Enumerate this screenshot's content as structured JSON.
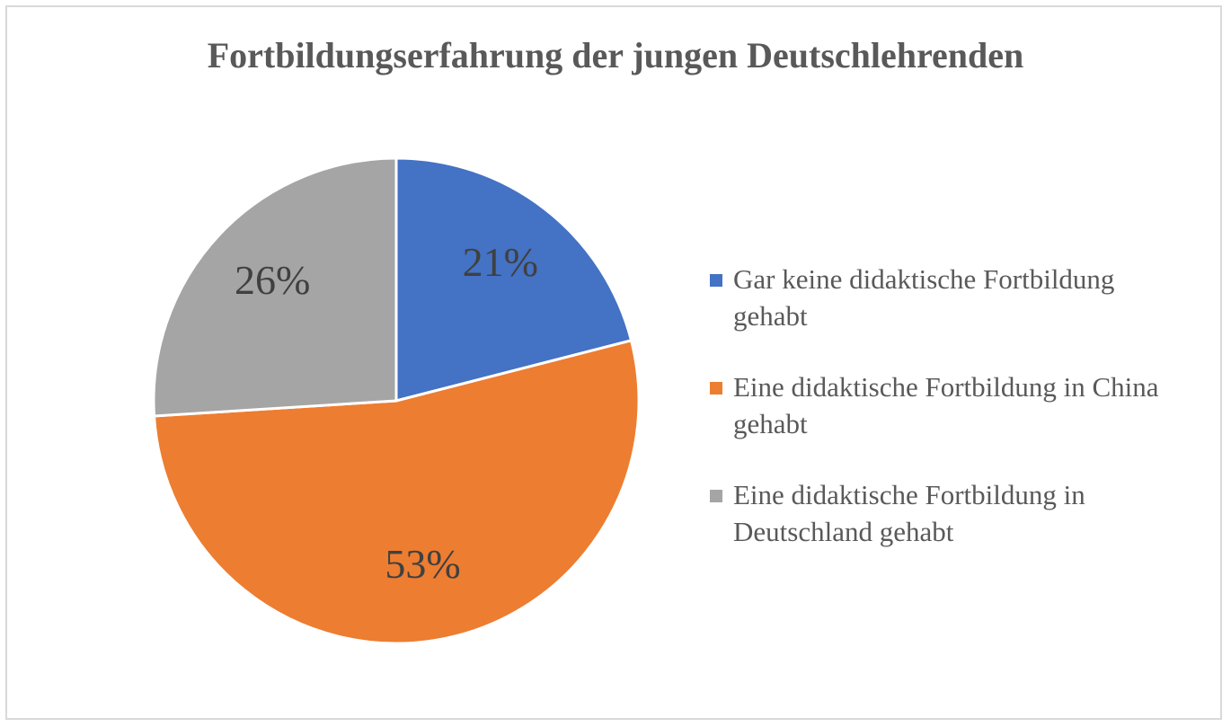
{
  "chart_data": {
    "type": "pie",
    "title": "Fortbildungserfahrung der jungen Deutschlehrenden",
    "categories": [
      "Gar keine didaktische Fortbildung gehabt",
      "Eine didaktische Fortbildung in China gehabt",
      "Eine didaktische Fortbildung in Deutschland gehabt"
    ],
    "values": [
      21,
      53,
      26
    ],
    "value_labels": [
      "21%",
      "53%",
      "26%"
    ],
    "colors": [
      "#4472c4",
      "#ed7d31",
      "#a5a5a5"
    ],
    "legend": "right"
  }
}
